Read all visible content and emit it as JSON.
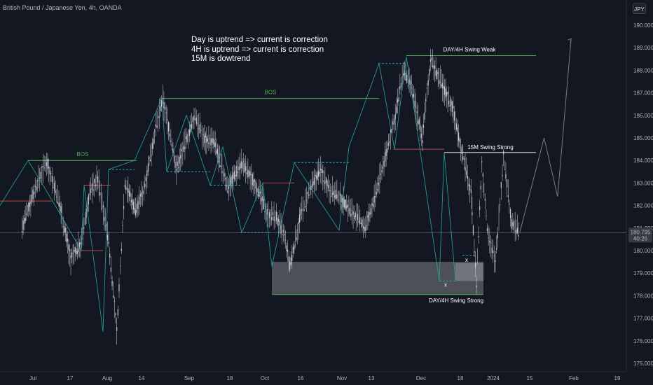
{
  "header": {
    "symbol": "British Pound / Japanese Yen, 4h, OANDA",
    "currency": "JPY"
  },
  "notes": [
    "Day is uptrend => current is correction",
    "4H is uptrend => current is correction",
    "15M is dowtrend"
  ],
  "price_badge": {
    "price": "180.795",
    "countdown": "40:26"
  },
  "colors": {
    "background": "#131722",
    "candle": "#d1d4dc",
    "swing_line": "#26a69a",
    "bos_line": "#4caf50",
    "red_line": "#c2494b",
    "zone": "#c9c9c9",
    "projection": "#787b86"
  },
  "chart_data": {
    "type": "line",
    "instrument": "British Pound / Japanese Yen",
    "timeframe": "4h",
    "source": "OANDA",
    "ylim": [
      174.6,
      190.6
    ],
    "y_ticks": [
      "175.000",
      "176.000",
      "177.000",
      "178.000",
      "179.000",
      "180.000",
      "181.000",
      "182.000",
      "183.000",
      "184.000",
      "185.000",
      "186.000",
      "187.000",
      "188.000",
      "189.000",
      "190.000"
    ],
    "x_ticks": [
      "Jul",
      "17",
      "Aug",
      "14",
      "Sep",
      "18",
      "Oct",
      "16",
      "Nov",
      "13",
      "Dec",
      "18",
      "2024",
      "15",
      "Feb",
      "19"
    ],
    "price_series": [
      [
        "Jun 26",
        181.0
      ],
      [
        "Jun 30",
        182.5
      ],
      [
        "Jul 5",
        184.0
      ],
      [
        "Jul 10",
        182.0
      ],
      [
        "Jul 14",
        179.6
      ],
      [
        "Jul 18",
        180.4
      ],
      [
        "Jul 21",
        182.6
      ],
      [
        "Jul 24",
        183.2
      ],
      [
        "Jul 28",
        180.4
      ],
      [
        "Jul 31",
        176.4
      ],
      [
        "Aug 3",
        183.0
      ],
      [
        "Aug 7",
        181.8
      ],
      [
        "Aug 10",
        182.7
      ],
      [
        "Aug 14",
        185.2
      ],
      [
        "Aug 17",
        186.7
      ],
      [
        "Aug 20",
        185.0
      ],
      [
        "Aug 22",
        183.6
      ],
      [
        "Aug 26",
        185.0
      ],
      [
        "Aug 29",
        186.0
      ],
      [
        "Sep 1",
        185.0
      ],
      [
        "Sep 5",
        184.8
      ],
      [
        "Sep 10",
        182.8
      ],
      [
        "Sep 15",
        183.9
      ],
      [
        "Sep 20",
        183.0
      ],
      [
        "Sep 25",
        181.6
      ],
      [
        "Sep 28",
        181.5
      ],
      [
        "Oct 1",
        180.6
      ],
      [
        "Oct 3",
        179.3
      ],
      [
        "Oct 7",
        181.6
      ],
      [
        "Oct 10",
        182.5
      ],
      [
        "Oct 14",
        183.6
      ],
      [
        "Oct 18",
        182.7
      ],
      [
        "Oct 22",
        182.3
      ],
      [
        "Oct 26",
        181.7
      ],
      [
        "Oct 31",
        181.0
      ],
      [
        "Nov 4",
        182.6
      ],
      [
        "Nov 8",
        184.5
      ],
      [
        "Nov 11",
        186.0
      ],
      [
        "Nov 14",
        188.0
      ],
      [
        "Nov 17",
        187.2
      ],
      [
        "Nov 21",
        185.0
      ],
      [
        "Nov 24",
        188.5
      ],
      [
        "Nov 28",
        187.4
      ],
      [
        "Dec 2",
        186.4
      ],
      [
        "Dec 6",
        184.2
      ],
      [
        "Dec 9",
        182.5
      ],
      [
        "Dec 11",
        178.6
      ],
      [
        "Dec 13",
        183.8
      ],
      [
        "Dec 15",
        181.0
      ],
      [
        "Dec 18",
        179.4
      ],
      [
        "Dec 21",
        184.2
      ],
      [
        "Dec 24",
        181.2
      ],
      [
        "Dec 27",
        180.8
      ]
    ],
    "projection": [
      [
        "Dec 27",
        180.8
      ],
      [
        "Jan 5",
        185.0
      ],
      [
        "Jan 10",
        182.4
      ],
      [
        "Jan 15",
        189.4
      ]
    ],
    "levels": [
      {
        "label": "BOS",
        "value": 184.0
      },
      {
        "label": "BOS",
        "value": 186.75
      },
      {
        "label": "DAY/4H Swing Weak",
        "value": 188.65
      },
      {
        "label": "15M Swing Strong",
        "value": 184.35
      },
      {
        "label": "DAY/4H Swing Strong",
        "value": 178.05
      }
    ],
    "markers": [
      "x",
      "x"
    ],
    "zone": [
      178.05,
      179.5
    ],
    "current_price": 180.795,
    "grid": false,
    "legend": "none"
  }
}
